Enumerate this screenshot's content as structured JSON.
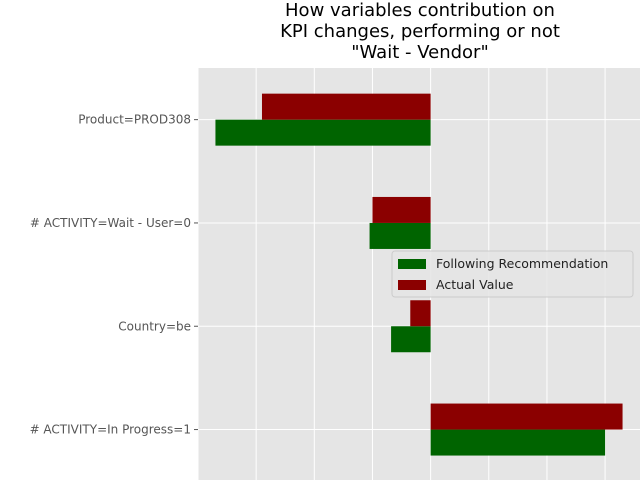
{
  "chart_data": {
    "type": "bar",
    "orientation": "horizontal",
    "title_lines": [
      "How variables contribution on",
      "KPI changes, performing or not",
      "\"Wait - Vendor\""
    ],
    "categories": [
      "Product=PROD308",
      "# ACTIVITY=Wait - User=0",
      "Country=be",
      "# ACTIVITY=In Progress=1"
    ],
    "series": [
      {
        "name": "Following Recommendation",
        "color": "#006400",
        "values": [
          -3.7,
          -1.05,
          -0.68,
          3.0
        ]
      },
      {
        "name": "Actual Value",
        "color": "#8b0000",
        "values": [
          -2.9,
          -1.0,
          -0.35,
          3.3
        ]
      }
    ],
    "xlim": [
      -4.0,
      3.6
    ],
    "grid": true,
    "legend_position": "center-right",
    "background_color": "#e5e5e5",
    "grid_color": "#ffffff"
  }
}
